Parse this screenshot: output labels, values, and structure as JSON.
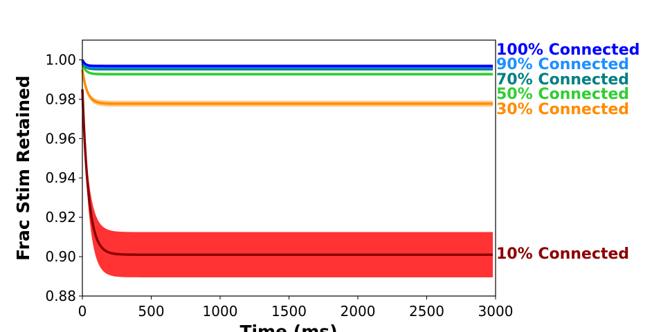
{
  "chart_data": {
    "type": "line",
    "title": "",
    "xlabel": "Time (ms)",
    "ylabel": "Frac Stim Retained",
    "xlim": [
      0,
      3000
    ],
    "ylim": [
      0.88,
      1.01
    ],
    "x_ticks": [
      0,
      500,
      1000,
      1500,
      2000,
      2500,
      3000
    ],
    "x_tick_labels": [
      "0",
      "500",
      "1000",
      "1500",
      "2000",
      "2500",
      "3000"
    ],
    "y_ticks": [
      0.88,
      0.9,
      0.92,
      0.94,
      0.96,
      0.98,
      1.0
    ],
    "y_tick_labels": [
      "0.88",
      "0.90",
      "0.92",
      "0.94",
      "0.96",
      "0.98",
      "1.00"
    ],
    "grid": false,
    "legend": "direct labels at right end of lines",
    "series": [
      {
        "name": "10% Connected",
        "color": "#8b0000",
        "band_color": "#ff3333",
        "start": 0.985,
        "plateau": 0.901,
        "band_half_width": 0.0115,
        "tau_ms": 45
      },
      {
        "name": "30% Connected",
        "color": "#ff8c00",
        "band_color": "#ffc98a",
        "start": 0.995,
        "plateau": 0.9777,
        "band_half_width": 0.0015,
        "tau_ms": 35
      },
      {
        "name": "50% Connected",
        "color": "#32cd32",
        "band_color": "#9be89b",
        "start": 0.998,
        "plateau": 0.9927,
        "band_half_width": 0.0007,
        "tau_ms": 25
      },
      {
        "name": "70% Connected",
        "color": "#008080",
        "band_color": "#7fbfbf",
        "start": 0.999,
        "plateau": 0.9952,
        "band_half_width": 0.0005,
        "tau_ms": 22
      },
      {
        "name": "90% Connected",
        "color": "#1e90ff",
        "band_color": "#8ec7ff",
        "start": 0.9995,
        "plateau": 0.9962,
        "band_half_width": 0.0005,
        "tau_ms": 20
      },
      {
        "name": "100% Connected",
        "color": "#0000ff",
        "band_color": "#7f7fff",
        "start": 1.0,
        "plateau": 0.9968,
        "band_half_width": 0.0008,
        "tau_ms": 20
      }
    ]
  }
}
